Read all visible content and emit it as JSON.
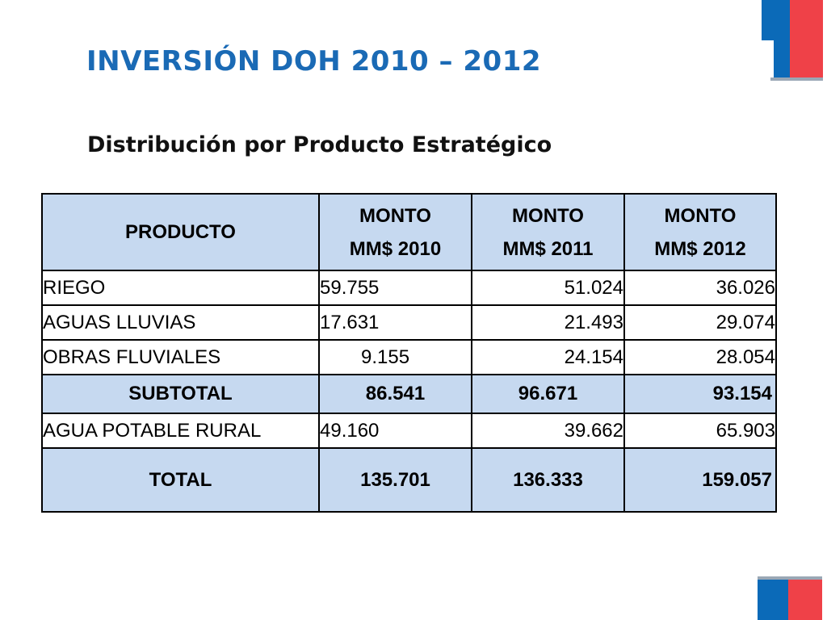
{
  "slide": {
    "title": "INVERSIÓN DOH 2010 – 2012",
    "subtitle": "Distribución por Producto Estratégico",
    "colors": {
      "title": "#1a6ab5",
      "header_fill": "#c6d9f0",
      "logo_blue": "#0b6ab8",
      "logo_red": "#ef4148"
    }
  },
  "table": {
    "headers": {
      "producto": "PRODUCTO",
      "y2010_l1": "MONTO",
      "y2010_l2": "MM$ 2010",
      "y2011_l1": "MONTO",
      "y2011_l2": "MM$ 2011",
      "y2012_l1": "MONTO",
      "y2012_l2": "MM$ 2012"
    },
    "rows": [
      {
        "producto": "RIEGO",
        "m2010": "59.755",
        "m2011": "51.024",
        "m2012": "36.026"
      },
      {
        "producto": "AGUAS LLUVIAS",
        "m2010": "17.631",
        "m2011": "21.493",
        "m2012": "29.074"
      },
      {
        "producto": "OBRAS FLUVIALES",
        "m2010": "9.155",
        "m2011": "24.154",
        "m2012": "28.054"
      },
      {
        "producto": "SUBTOTAL",
        "m2010": "86.541",
        "m2011": "96.671",
        "m2012": "93.154"
      },
      {
        "producto": "AGUA POTABLE RURAL",
        "m2010": "49.160",
        "m2011": "39.662",
        "m2012": "65.903"
      },
      {
        "producto": "TOTAL",
        "m2010": "135.701",
        "m2011": "136.333",
        "m2012": "159.057"
      }
    ]
  }
}
